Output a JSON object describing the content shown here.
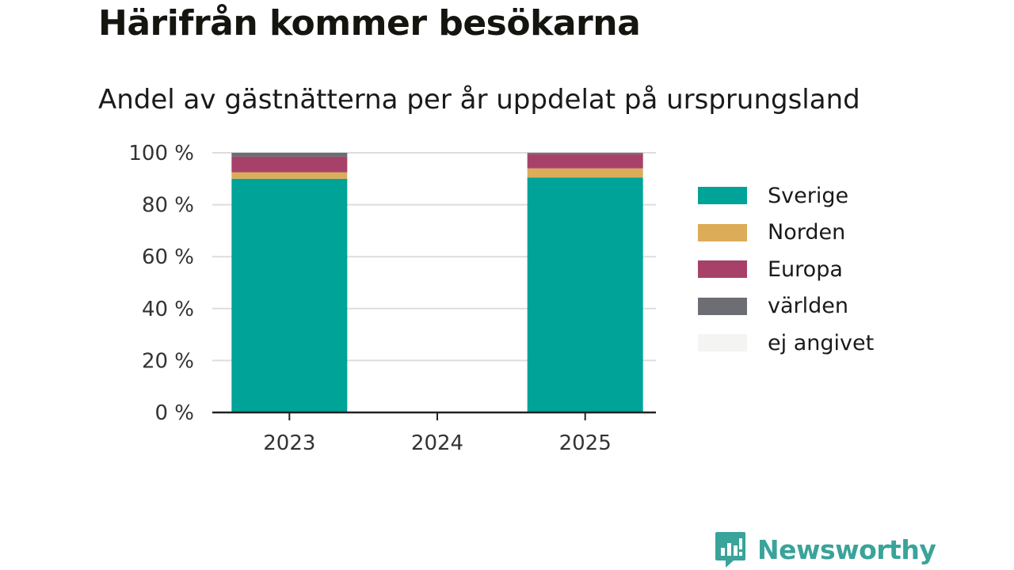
{
  "header": {
    "title": "Härifrån kommer besökarna",
    "subtitle": "Andel av gästnätterna per år uppdelat på ursprungsland"
  },
  "chart_data": {
    "type": "bar",
    "stacked": true,
    "categories": [
      "2023",
      "2024",
      "2025"
    ],
    "series": [
      {
        "name": "Sverige",
        "color": "#00a398",
        "values": [
          90,
          0,
          90.5
        ]
      },
      {
        "name": "Norden",
        "color": "#dcac58",
        "values": [
          2.5,
          0,
          3.5
        ]
      },
      {
        "name": "Europa",
        "color": "#a8416a",
        "values": [
          6,
          0,
          5.5
        ]
      },
      {
        "name": "världen",
        "color": "#6d6e74",
        "values": [
          1.5,
          0,
          0.5
        ]
      },
      {
        "name": "ej angivet",
        "color": "#f4f4f2",
        "values": [
          0,
          0,
          0
        ]
      }
    ],
    "ylim": [
      0,
      100
    ],
    "yticks": [
      0,
      20,
      40,
      60,
      80,
      100
    ],
    "ytick_labels": [
      "0 %",
      "20 %",
      "40 %",
      "60 %",
      "80 %",
      "100 %"
    ],
    "grid": true,
    "legend_position": "right"
  },
  "brand": {
    "name": "Newsworthy",
    "color": "#3aa39a"
  }
}
